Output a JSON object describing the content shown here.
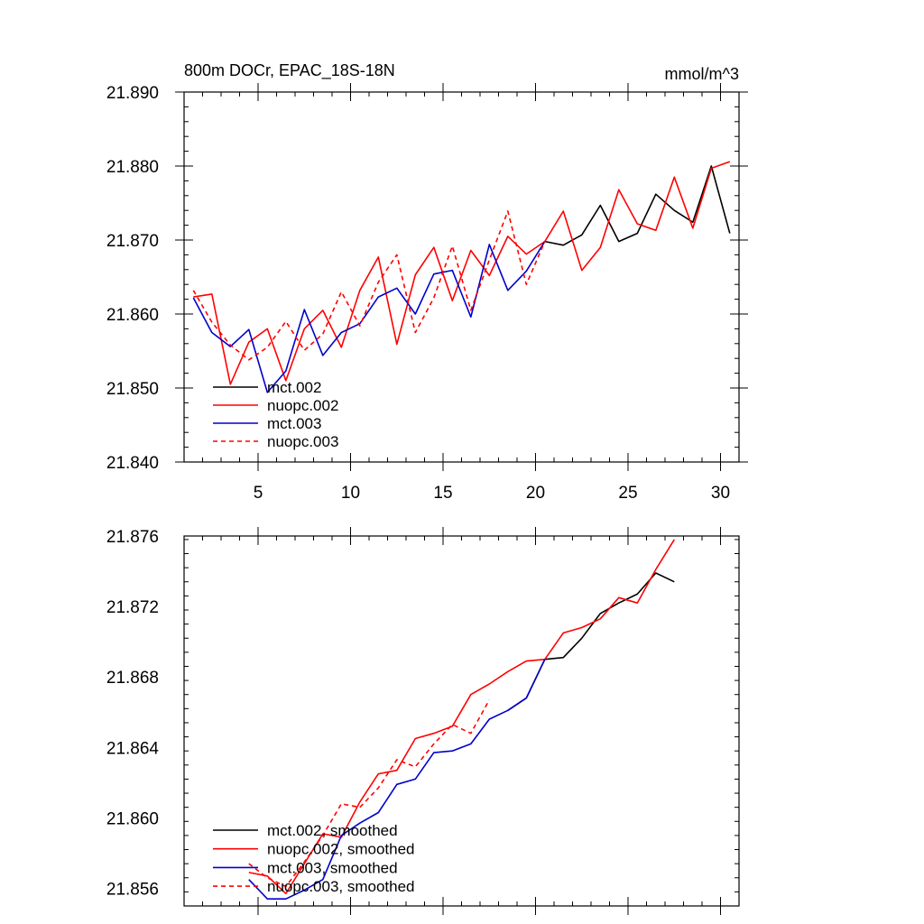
{
  "chart_data": [
    {
      "type": "line",
      "title": "800m DOCr, EPAC_18S-18N",
      "units": "mmol/m^3",
      "xlim": [
        1.0,
        31.0
      ],
      "ylim": [
        21.84,
        21.89
      ],
      "xticks": [
        5,
        10,
        15,
        20,
        25,
        30
      ],
      "xtick_labels": [
        "5",
        "10",
        "15",
        "20",
        "25",
        "30"
      ],
      "yticks": [
        21.84,
        21.85,
        21.86,
        21.87,
        21.88,
        21.89
      ],
      "ytick_labels": [
        "21.840",
        "21.850",
        "21.860",
        "21.870",
        "21.880",
        "21.890"
      ],
      "legend_position": "lower-left",
      "series": [
        {
          "name": "mct.002",
          "color": "#000000",
          "dash": "solid",
          "x": [
            20.5,
            21.5,
            22.5,
            23.5,
            24.5,
            25.5,
            26.5,
            27.5,
            28.5,
            29.5,
            30.5
          ],
          "y": [
            21.8698,
            21.8693,
            21.8707,
            21.8747,
            21.8698,
            21.8709,
            21.8762,
            21.874,
            21.8724,
            21.88,
            21.8709
          ]
        },
        {
          "name": "nuopc.002",
          "color": "#ff0000",
          "dash": "solid",
          "x": [
            1.5,
            2.5,
            3.5,
            4.5,
            5.5,
            6.5,
            7.5,
            8.5,
            9.5,
            10.5,
            11.5,
            12.5,
            13.5,
            14.5,
            15.5,
            16.5,
            17.5,
            18.5,
            19.5,
            20.5,
            21.5,
            22.5,
            23.5,
            24.5,
            25.5,
            26.5,
            27.5,
            28.5,
            29.5,
            30.5
          ],
          "y": [
            21.8623,
            21.8627,
            21.8505,
            21.8562,
            21.858,
            21.851,
            21.858,
            21.8605,
            21.8555,
            21.8632,
            21.8677,
            21.8559,
            21.8653,
            21.869,
            21.8618,
            21.8686,
            21.8652,
            21.8705,
            21.8681,
            21.8698,
            21.8739,
            21.8659,
            21.869,
            21.8768,
            21.8722,
            21.8713,
            21.8785,
            21.8716,
            21.8797,
            21.8806
          ]
        },
        {
          "name": "mct.003",
          "color": "#0000cc",
          "dash": "solid",
          "x": [
            1.5,
            2.5,
            3.5,
            4.5,
            5.5,
            6.5,
            7.5,
            8.5,
            9.5,
            10.5,
            11.5,
            12.5,
            13.5,
            14.5,
            15.5,
            16.5,
            17.5,
            18.5,
            19.5,
            20.5
          ],
          "y": [
            21.8622,
            21.8575,
            21.8556,
            21.8579,
            21.8494,
            21.8523,
            21.8606,
            21.8544,
            21.8575,
            21.8587,
            21.8623,
            21.8635,
            21.86,
            21.8654,
            21.8659,
            21.8596,
            21.8694,
            21.8632,
            21.8658,
            21.8698
          ]
        },
        {
          "name": "nuopc.003",
          "color": "#ff0000",
          "dash": "dashed",
          "x": [
            1.5,
            2.5,
            3.5,
            4.5,
            5.5,
            6.5,
            7.5,
            8.5,
            9.5,
            10.5,
            11.5,
            12.5,
            13.5,
            14.5,
            15.5,
            16.5,
            17.5,
            18.5,
            19.5,
            20.5
          ],
          "y": [
            21.8632,
            21.8589,
            21.8558,
            21.8538,
            21.8555,
            21.859,
            21.8551,
            21.8573,
            21.863,
            21.8584,
            21.8643,
            21.868,
            21.8575,
            21.8622,
            21.8692,
            21.8605,
            21.8673,
            21.8739,
            21.864,
            21.8698
          ]
        }
      ]
    },
    {
      "type": "line",
      "xlim": [
        1.0,
        31.0
      ],
      "ylim": [
        21.855,
        21.876
      ],
      "xticks": [
        5,
        10,
        15,
        20,
        25,
        30
      ],
      "yticks": [
        21.856,
        21.86,
        21.864,
        21.868,
        21.872,
        21.876
      ],
      "ytick_labels": [
        "21.856",
        "21.860",
        "21.864",
        "21.868",
        "21.872",
        "21.876"
      ],
      "legend_position": "lower-left",
      "series": [
        {
          "name": "mct.002, smoothed",
          "color": "#000000",
          "dash": "solid",
          "x": [
            18.5,
            19.5,
            20.5,
            21.5,
            22.5,
            23.5,
            24.5,
            25.5,
            26.5,
            27.5
          ],
          "y": [
            21.8661,
            21.8668,
            21.869,
            21.8691,
            21.8702,
            21.8716,
            21.8722,
            21.8727,
            21.8739,
            21.8734
          ]
        },
        {
          "name": "nuopc.002, smoothed",
          "color": "#ff0000",
          "dash": "solid",
          "x": [
            4.5,
            5.5,
            6.5,
            7.5,
            8.5,
            9.5,
            10.5,
            11.5,
            12.5,
            13.5,
            14.5,
            15.5,
            16.5,
            17.5,
            18.5,
            19.5,
            20.5,
            21.5,
            22.5,
            23.5,
            24.5,
            25.5,
            26.5,
            27.5
          ],
          "y": [
            21.8569,
            21.8567,
            21.8557,
            21.8574,
            21.8591,
            21.8589,
            21.8609,
            21.8625,
            21.8627,
            21.8645,
            21.8648,
            21.8652,
            21.867,
            21.8676,
            21.8683,
            21.8689,
            21.869,
            21.8705,
            21.8708,
            21.8713,
            21.8725,
            21.8722,
            21.8741,
            21.8758
          ]
        },
        {
          "name": "mct.003, smoothed",
          "color": "#0000cc",
          "dash": "solid",
          "x": [
            4.5,
            5.5,
            6.5,
            7.5,
            8.5,
            9.5,
            10.5,
            11.5,
            12.5,
            13.5,
            14.5,
            15.5,
            16.5,
            17.5,
            18.5,
            19.5,
            20.5
          ],
          "y": [
            21.8565,
            21.8554,
            21.8554,
            21.8559,
            21.8565,
            21.859,
            21.8597,
            21.8603,
            21.8619,
            21.8622,
            21.8637,
            21.8638,
            21.8642,
            21.8656,
            21.8661,
            21.8668,
            21.869
          ]
        },
        {
          "name": "nuopc.003, smoothed",
          "color": "#ff0000",
          "dash": "dashed",
          "x": [
            4.5,
            5.5,
            6.5,
            7.5,
            8.5,
            9.5,
            10.5,
            11.5,
            12.5,
            13.5,
            14.5,
            15.5,
            16.5,
            17.5
          ],
          "y": [
            21.8574,
            21.8566,
            21.8561,
            21.8575,
            21.859,
            21.8608,
            21.8606,
            21.8617,
            21.8633,
            21.8629,
            21.8642,
            21.8653,
            21.8648,
            21.8667
          ]
        }
      ]
    }
  ]
}
